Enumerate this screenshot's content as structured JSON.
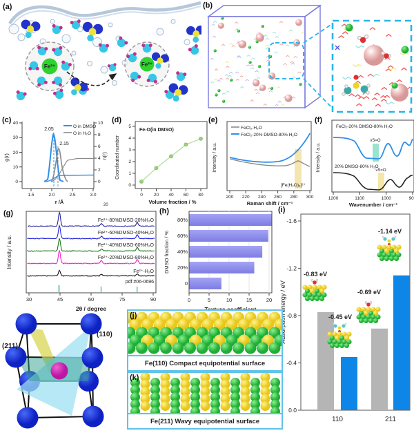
{
  "panels": {
    "a": {
      "label": "(a)",
      "fe": "Fe²⁺"
    },
    "b": {
      "label": "(b)"
    },
    "c": {
      "label": "(c)",
      "ylabel": "g(r)",
      "ylabel_right": "n(r)",
      "xlabel": "r /Å",
      "xticks": [
        "1.5",
        "2.0",
        "2.5",
        "3.0"
      ],
      "yticks": [
        "0",
        "10",
        "20",
        "30",
        "40"
      ],
      "yticks_right": [
        "0",
        "2",
        "4",
        "6",
        "8",
        "10"
      ],
      "legend": [
        "O in DMSO",
        "O in H₂O"
      ],
      "peak_labels": [
        "2.05",
        "2.15"
      ],
      "stray": "20"
    },
    "d": {
      "label": "(d)",
      "title": "Fe-O(in DMSO)",
      "ylabel": "Coordinated number",
      "xlabel": "Volume fraction / %",
      "xticks": [
        "0",
        "20",
        "40",
        "60",
        "80"
      ],
      "yticks": [
        "0",
        "1",
        "2",
        "3",
        "4",
        "5"
      ]
    },
    "e": {
      "label": "(e)",
      "ylabel": "Intensity / a.u.",
      "xlabel": "Raman shift / cm⁻¹",
      "xticks": [
        "200",
        "220",
        "240",
        "260",
        "280",
        "300"
      ],
      "legend": [
        "FeCl₂-H₂O",
        "FeCl₂-20% DMSO-80% H₂O"
      ],
      "annotation": "[Fe(H₂O)₆]²⁺"
    },
    "f": {
      "label": "(f)",
      "ylabel": "Intensity / a.u.",
      "xlabel": "Wavenumber / cm⁻¹",
      "xticks": [
        "1200",
        "1100",
        "1000",
        "900"
      ],
      "curve_top": "FeCl₂-20% DMSO-80% H₂O",
      "curve_bottom": "20% DMSO-80% H₂O",
      "band_top": "νS=O",
      "band_bottom": "νS=O"
    },
    "g": {
      "label": "(g)",
      "ylabel": "Intensity / a.u.",
      "xlabel": "2θ / degree",
      "xticks": [
        "30",
        "45",
        "60",
        "75",
        "90"
      ],
      "traces": [
        "Fe²⁺-80%DMSO-20%H₂O",
        "Fe²⁺-60%DMSO-40%H₂O",
        "Fe²⁺-40%DMSO-60%H₂O",
        "Fe²⁺-20%DMSO-80%H₂O",
        "Fe²⁺-H₂O",
        "pdf #06-0696"
      ]
    },
    "h": {
      "label": "(h)",
      "ylabel": "DMSO fraction / %",
      "xlabel": "Texture coefficient",
      "xticks": [
        "0",
        "5",
        "10",
        "15",
        "20"
      ],
      "categories": [
        "80%",
        "60%",
        "40%",
        "20%",
        "0"
      ]
    },
    "i": {
      "label": "(i)",
      "ylabel": "Adsorption energy / eV",
      "yticks": [
        "-1.6",
        "-1.2",
        "-0.8",
        "-0.4",
        "0.0"
      ],
      "categories": [
        "110",
        "211"
      ],
      "bar_labels": [
        "-0.83 eV",
        "-0.45 eV",
        "-0.69 eV",
        "-1.14 eV"
      ]
    },
    "j": {
      "label": "(j)",
      "caption": "Fe(110) Compact equipotential surface"
    },
    "k": {
      "label": "(k)",
      "caption": "Fe(211) Wavy equipotential surface"
    },
    "crystal": {
      "plane1": "(211)",
      "plane2": "(110)"
    }
  },
  "colors": {
    "blue_curve": "#2f8fe8",
    "gray_curve": "#8a8a8a",
    "bar_blue": "#0d86e8",
    "bar_gray": "#b5b5b5",
    "bar_periwinkle": "#8585ec",
    "pdf_tick": "#a8dcd8",
    "box_purple": "#7a7ae0",
    "dashed_cyan": "#2ab4e8"
  },
  "chart_data": [
    {
      "id": "c",
      "type": "line",
      "xlabel": "r /Å",
      "ylabel": "g(r)",
      "ylabel_right": "n(r)",
      "xlim": [
        1.25,
        3.0
      ],
      "ylim_left": [
        0,
        40
      ],
      "ylim_right": [
        0,
        10
      ],
      "legend_position": "top-right",
      "series": [
        {
          "name": "O in DMSO",
          "color": "#2f8fe8",
          "peak_r": 2.05,
          "peak_g": 33,
          "n_plateau": 1.2
        },
        {
          "name": "O in H₂O",
          "color": "#8a8a8a",
          "peak_r": 2.15,
          "peak_g": 21,
          "n_plateau": 4.0
        }
      ],
      "annotations": [
        "2.05",
        "2.15"
      ]
    },
    {
      "id": "d",
      "type": "scatter",
      "title": "Fe-O(in DMSO)",
      "xlabel": "Volume fraction / %",
      "ylabel": "Coordinated number",
      "ylim": [
        0,
        5
      ],
      "xlim": [
        -5,
        90
      ],
      "color": "#9ccf7f",
      "x": [
        0,
        20,
        40,
        60,
        80
      ],
      "y": [
        0.3,
        1.45,
        2.45,
        3.45,
        3.95
      ]
    },
    {
      "id": "e",
      "type": "line",
      "xlabel": "Raman shift / cm⁻¹",
      "ylabel": "Intensity / a.u.",
      "xlim": [
        200,
        300
      ],
      "annotation": "[Fe(H₂O)₆]²⁺",
      "annotation_band_cm": 285,
      "series": [
        {
          "name": "FeCl₂-H₂O",
          "color": "#8a8a8a",
          "feature": "weak broad band near 285 cm⁻¹"
        },
        {
          "name": "FeCl₂-20% DMSO-80% H₂O",
          "color": "#2f8fe8",
          "feature": "background rising toward 300 cm⁻¹"
        }
      ]
    },
    {
      "id": "f",
      "type": "line",
      "xlabel": "Wavenumber / cm⁻¹",
      "ylabel": "Intensity / a.u.",
      "xlim": [
        1200,
        900
      ],
      "x_reversed": true,
      "series": [
        {
          "name": "FeCl₂-20% DMSO-80% H₂O",
          "color": "#2f8fe8",
          "vSO_band_cm": 1040
        },
        {
          "name": "20% DMSO-80% H₂O",
          "color": "#222222",
          "vSO_band_cm": 1020
        }
      ]
    },
    {
      "id": "g",
      "type": "line",
      "xlabel": "2θ / degree",
      "ylabel": "Intensity / a.u.",
      "xlim": [
        30,
        90
      ],
      "peak_positions": [
        44.7,
        65.0,
        82.3
      ],
      "series": [
        {
          "name": "Fe²⁺-80%DMSO-20%H₂O",
          "color": "#20209a"
        },
        {
          "name": "Fe²⁺-60%DMSO-40%H₂O",
          "color": "#2525e0"
        },
        {
          "name": "Fe²⁺-40%DMSO-60%H₂O",
          "color": "#157815"
        },
        {
          "name": "Fe²⁺-20%DMSO-80%H₂O",
          "color": "#f020d0"
        },
        {
          "name": "Fe²⁺-H₂O",
          "color": "#141414"
        },
        {
          "name": "pdf #06-0696",
          "color": "#a8dcd8"
        }
      ],
      "peak_heights": [
        [
          20,
          3.5,
          5.5
        ],
        [
          19,
          3.5,
          5.5
        ],
        [
          18,
          3,
          5
        ],
        [
          19,
          4,
          6
        ],
        [
          8,
          2,
          3
        ]
      ]
    },
    {
      "id": "h",
      "type": "bar",
      "orientation": "horizontal",
      "xlabel": "Texture coefficient",
      "ylabel": "DMSO fraction / %",
      "xlim": [
        0,
        20
      ],
      "bar_color": "#8585ec",
      "categories": [
        "0",
        "20%",
        "40%",
        "60%",
        "80%"
      ],
      "values": [
        8,
        16.2,
        18.2,
        19.7,
        21.8
      ]
    },
    {
      "id": "i",
      "type": "bar",
      "ylabel": "Adsorption energy / eV",
      "categories": [
        "110",
        "211"
      ],
      "ylim": [
        0,
        -1.6
      ],
      "bar_labels": [
        "-0.83 eV",
        "-0.45 eV",
        "-0.69 eV",
        "-1.14 eV"
      ],
      "series": [
        {
          "color": "#b5b5b5",
          "values": [
            -0.83,
            -0.69
          ]
        },
        {
          "color": "#0d86e8",
          "values": [
            -0.45,
            -1.14
          ]
        }
      ]
    }
  ]
}
